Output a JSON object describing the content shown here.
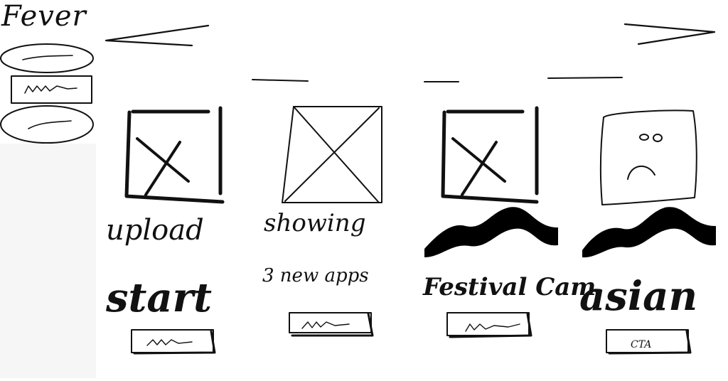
{
  "app": {
    "logo_text": "Fever"
  },
  "cards": [
    {
      "title": "upload",
      "subtitle": "start"
    },
    {
      "title": "showing",
      "subtitle": "3 new apps"
    },
    {
      "title": "",
      "subtitle": "Festival Cam"
    },
    {
      "title": "",
      "subtitle": "asian",
      "button_label": "CTA"
    }
  ],
  "icons": {
    "card1": "image-placeholder-icon",
    "card2": "image-placeholder-icon",
    "card3": "image-placeholder-icon",
    "card4": "sad-face-icon"
  }
}
